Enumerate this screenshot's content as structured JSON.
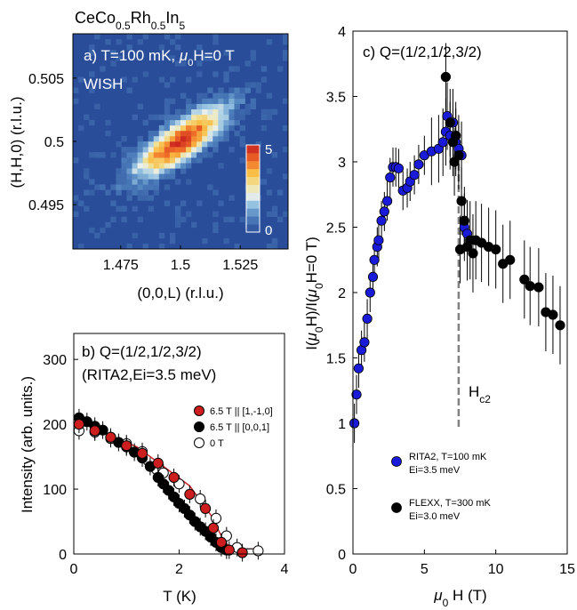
{
  "figure": {
    "compound": "CeCo",
    "compound_sub1": "0.5",
    "compound_mid": "Rh",
    "compound_sub2": "0.5",
    "compound_end": "In",
    "compound_sub3": "5"
  },
  "chart_data": [
    {
      "id": "a",
      "type": "heatmap",
      "panel_label": "a) T=100 mK, ",
      "panel_label_mu": "μ",
      "panel_label_sub": "0",
      "panel_label_end": "H=0 T",
      "instrument": "WISH",
      "xlabel": "(0,0,L) (r.l.u.)",
      "ylabel": "(H,H,0) (r.l.u.)",
      "xlim": [
        1.455,
        1.545
      ],
      "ylim": [
        0.4915,
        0.5085
      ],
      "xticks": [
        "1.475",
        "1.5",
        "1.525"
      ],
      "yticks": [
        "0.495",
        "0.5",
        "0.505"
      ],
      "colorbar_ticks": [
        "0",
        "5"
      ],
      "clim": [
        0,
        5.5
      ],
      "background_color": "#2a4d9a",
      "peak": {
        "center_L": 1.5,
        "center_H": 0.5,
        "peak_intensity": 5.3
      }
    },
    {
      "id": "b",
      "type": "scatter",
      "title_line1": "b) Q=(1/2,1/2,3/2)",
      "title_line2": "(RITA2,Ei=3.5 meV)",
      "xlabel": "T (K)",
      "ylabel": "Intensity (arb. units.)",
      "xlim": [
        0,
        4
      ],
      "ylim": [
        0,
        340
      ],
      "xticks": [
        "0",
        "2",
        "4"
      ],
      "yticks": [
        "0",
        "100",
        "200",
        "300"
      ],
      "legend_position": "right",
      "series": [
        {
          "name": "6.5 T || [1,-1,0]",
          "color": "#cc1e1e",
          "x": [
            0.1,
            0.4,
            0.7,
            1.0,
            1.3,
            1.6,
            1.9,
            2.2,
            2.5,
            2.65,
            2.8,
            2.95,
            3.2
          ],
          "y": [
            200,
            190,
            180,
            167,
            155,
            140,
            118,
            92,
            70,
            40,
            18,
            6,
            2
          ]
        },
        {
          "name": "6.5 T || [0,0,1]",
          "color": "#000000",
          "x": [
            0.1,
            0.25,
            0.4,
            0.55,
            0.7,
            0.85,
            1.0,
            1.15,
            1.3,
            1.45,
            1.6,
            1.7,
            1.8,
            1.9,
            2.0,
            2.1,
            2.2,
            2.3,
            2.4,
            2.5,
            2.6,
            2.7,
            2.8,
            2.9
          ],
          "y": [
            210,
            204,
            197,
            191,
            180,
            172,
            165,
            157,
            148,
            135,
            118,
            108,
            98,
            88,
            78,
            70,
            60,
            50,
            42,
            35,
            26,
            18,
            10,
            6
          ]
        },
        {
          "name": "0 T",
          "color": "#ffffff",
          "x": [
            0.1,
            0.4,
            0.7,
            1.0,
            1.3,
            1.7,
            2.0,
            2.4,
            2.7,
            2.9,
            3.1,
            3.5
          ],
          "y": [
            190,
            188,
            178,
            170,
            158,
            125,
            108,
            85,
            55,
            28,
            10,
            5
          ]
        }
      ],
      "fit_lines": [
        {
          "color": "#cc1e1e",
          "x": [
            0.05,
            1.2,
            2.2,
            2.6,
            2.85,
            3.0,
            3.5
          ],
          "y": [
            205,
            165,
            105,
            60,
            20,
            8,
            8
          ]
        },
        {
          "color": "#333333",
          "x": [
            0.05,
            1.0,
            1.8,
            2.3,
            2.7,
            2.85,
            3.4
          ],
          "y": [
            212,
            168,
            100,
            55,
            15,
            8,
            8
          ]
        }
      ]
    },
    {
      "id": "c",
      "type": "scatter",
      "title": "c) Q=(1/2,1/2,3/2)",
      "xlabel_mu": "μ",
      "xlabel_sub": "0",
      "xlabel_end": " H (T)",
      "ylabel": "I(μ0H)/I(μ0H=0 T)",
      "ylabel_parts": [
        "I(",
        "μ",
        "0",
        "H)/I(",
        "μ",
        "0",
        "H=0 T)"
      ],
      "xlim": [
        0,
        15
      ],
      "ylim": [
        0,
        4
      ],
      "xticks": [
        "0",
        "5",
        "10",
        "15"
      ],
      "yticks": [
        "0",
        "0.5",
        "1",
        "1.5",
        "2",
        "2.5",
        "3",
        "3.5",
        "4"
      ],
      "annotation": "H",
      "annotation_sub": "c2",
      "hc2": 7.4,
      "legend_position": "bottom-left",
      "series": [
        {
          "name": "RITA2, T=100 mK",
          "name_line2": "Ei=3.5 meV",
          "color": "#1a1ad9",
          "x": [
            0.1,
            0.25,
            0.4,
            0.6,
            0.8,
            1.0,
            1.2,
            1.4,
            1.5,
            1.7,
            1.8,
            2.0,
            2.2,
            2.4,
            2.6,
            2.8,
            3.0,
            3.2,
            3.5,
            3.8,
            4.0,
            4.3,
            4.6,
            5.0,
            5.5,
            6.0,
            6.3,
            6.5,
            6.6,
            6.8,
            7.0,
            7.2,
            7.4,
            7.6,
            7.8,
            8.0
          ],
          "y": [
            1.0,
            1.22,
            1.42,
            1.56,
            1.62,
            1.8,
            2.0,
            2.12,
            2.25,
            2.35,
            2.4,
            2.55,
            2.62,
            2.7,
            2.88,
            2.96,
            2.96,
            2.95,
            2.78,
            2.8,
            2.85,
            2.9,
            2.98,
            3.05,
            3.08,
            3.1,
            3.15,
            3.23,
            3.35,
            3.2,
            3.3,
            3.15,
            3.1,
            3.05,
            2.5,
            2.45
          ]
        },
        {
          "name": "FLEXX, T=300 mK",
          "name_line2": "Ei=3.0 meV",
          "color": "#000000",
          "x": [
            6.5,
            6.8,
            7.0,
            7.1,
            7.2,
            7.4,
            7.5,
            7.6,
            7.8,
            8.0,
            8.2,
            8.4,
            8.6,
            9.0,
            9.5,
            10.0,
            10.5,
            11.0,
            12.0,
            12.4,
            13.0,
            13.5,
            14.0,
            14.5
          ],
          "y": [
            3.65,
            3.3,
            3.15,
            3.0,
            3.2,
            3.05,
            2.33,
            2.7,
            2.55,
            2.35,
            2.4,
            2.3,
            2.4,
            2.38,
            2.35,
            2.33,
            2.22,
            2.25,
            2.1,
            2.05,
            2.04,
            1.85,
            1.83,
            1.75
          ]
        }
      ]
    }
  ]
}
